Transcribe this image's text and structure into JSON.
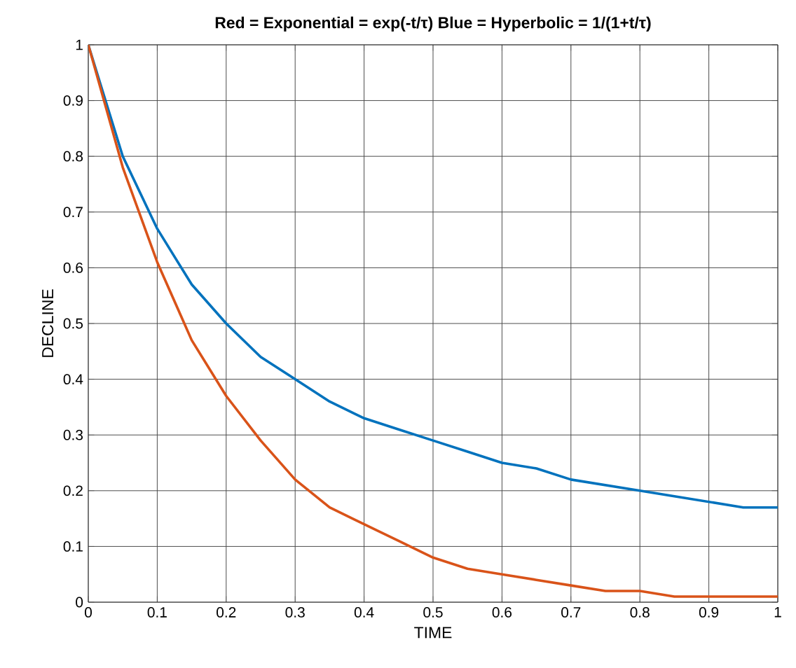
{
  "chart_data": {
    "type": "line",
    "title": "Red = Exponential = exp(-t/τ)   Blue = Hyperbolic = 1/(1+t/τ)",
    "xlabel": "TIME",
    "ylabel": "DECLINE",
    "x": [
      0,
      0.05,
      0.1,
      0.15,
      0.2,
      0.25,
      0.3,
      0.35,
      0.4,
      0.45,
      0.5,
      0.55,
      0.6,
      0.65,
      0.7,
      0.75,
      0.8,
      0.85,
      0.9,
      0.95,
      1
    ],
    "series": [
      {
        "color": "#0072bd",
        "values": [
          1,
          0.8,
          0.67,
          0.57,
          0.5,
          0.44,
          0.4,
          0.36,
          0.33,
          0.31,
          0.29,
          0.27,
          0.25,
          0.24,
          0.22,
          0.21,
          0.2,
          0.19,
          0.18,
          0.17,
          0.17
        ]
      },
      {
        "color": "#d95319",
        "values": [
          1,
          0.78,
          0.61,
          0.47,
          0.37,
          0.29,
          0.22,
          0.17,
          0.14,
          0.11,
          0.08,
          0.06,
          0.05,
          0.04,
          0.03,
          0.02,
          0.02,
          0.01,
          0.01,
          0.01,
          0.01
        ]
      }
    ],
    "xlim": [
      0,
      1
    ],
    "ylim": [
      0,
      1
    ],
    "xticks": [
      0,
      0.1,
      0.2,
      0.3,
      0.4,
      0.5,
      0.6,
      0.7,
      0.8,
      0.9,
      1
    ],
    "yticks": [
      0,
      0.1,
      0.2,
      0.3,
      0.4,
      0.5,
      0.6,
      0.7,
      0.8,
      0.9,
      1
    ],
    "grid": true,
    "marker": "none",
    "line_style": "solid"
  }
}
